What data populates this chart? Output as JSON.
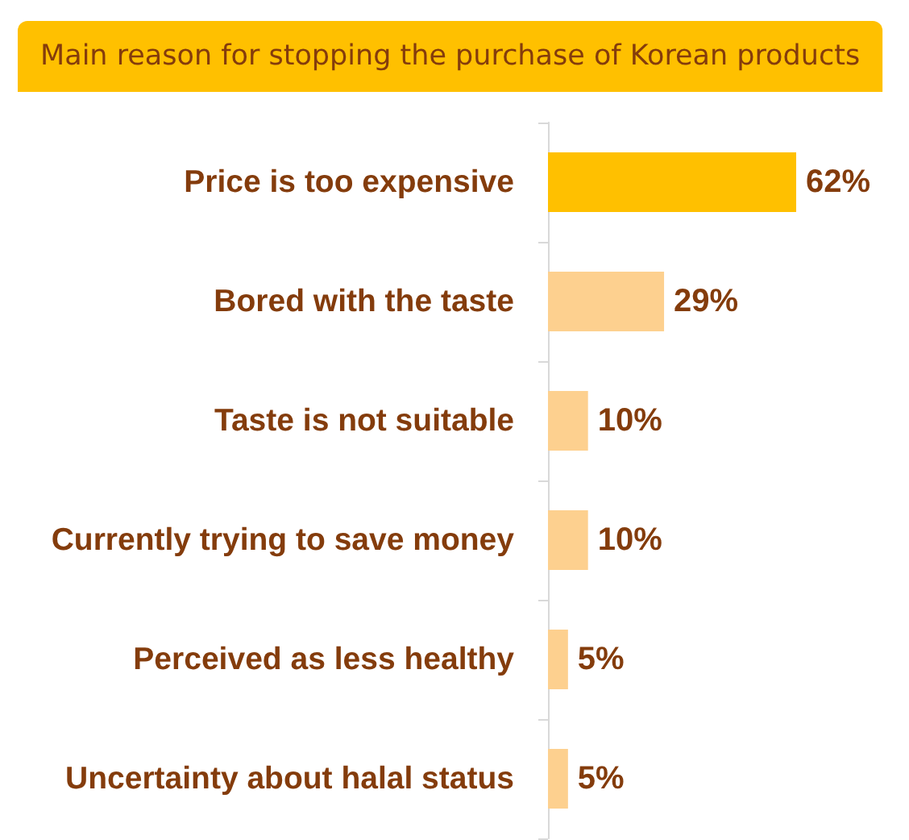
{
  "chart_data": {
    "type": "bar",
    "orientation": "horizontal",
    "title": "Main reason for stopping the purchase of Korean products",
    "categories": [
      "Price is too expensive",
      "Bored with the taste",
      "Taste is not suitable",
      "Currently trying to save money",
      "Perceived as less healthy",
      "Uncertainty about halal status"
    ],
    "values": [
      62,
      29,
      10,
      10,
      5,
      5
    ],
    "colors": [
      "#ffc000",
      "#fdd08f",
      "#fdd08f",
      "#fdd08f",
      "#fdd08f",
      "#fdd08f"
    ],
    "value_labels": [
      "62%",
      "29%",
      "10%",
      "10%",
      "5%",
      "5%"
    ],
    "grid": false,
    "tick_labels": "y"
  }
}
